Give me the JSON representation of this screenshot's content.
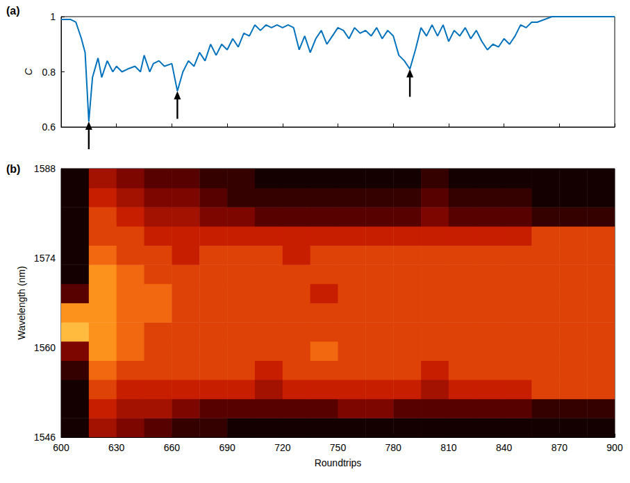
{
  "chart_data": [
    {
      "type": "line",
      "panel_label": "(a)",
      "y_label": "C",
      "color": "#0072bd",
      "x": [
        600,
        605,
        608,
        611,
        613,
        615,
        617,
        620,
        622,
        625,
        628,
        630,
        633,
        636,
        640,
        643,
        645,
        648,
        650,
        653,
        656,
        660,
        663,
        666,
        669,
        672,
        675,
        678,
        681,
        684,
        687,
        690,
        693,
        696,
        699,
        702,
        705,
        708,
        711,
        714,
        717,
        720,
        723,
        726,
        729,
        732,
        735,
        738,
        741,
        744,
        747,
        750,
        753,
        756,
        759,
        762,
        765,
        768,
        771,
        774,
        777,
        780,
        783,
        786,
        789,
        792,
        795,
        798,
        801,
        804,
        807,
        810,
        813,
        816,
        819,
        822,
        825,
        828,
        831,
        834,
        837,
        840,
        843,
        846,
        849,
        852,
        855,
        858,
        862,
        866,
        870,
        880,
        890,
        900
      ],
      "values": [
        0.99,
        0.99,
        0.98,
        0.92,
        0.87,
        0.62,
        0.78,
        0.85,
        0.78,
        0.84,
        0.8,
        0.82,
        0.8,
        0.81,
        0.82,
        0.8,
        0.86,
        0.8,
        0.83,
        0.84,
        0.82,
        0.83,
        0.73,
        0.8,
        0.84,
        0.82,
        0.87,
        0.84,
        0.9,
        0.86,
        0.9,
        0.88,
        0.92,
        0.89,
        0.94,
        0.93,
        0.97,
        0.95,
        0.97,
        0.96,
        0.97,
        0.96,
        0.97,
        0.96,
        0.88,
        0.93,
        0.87,
        0.92,
        0.95,
        0.9,
        0.93,
        0.96,
        0.95,
        0.92,
        0.96,
        0.94,
        0.95,
        0.93,
        0.96,
        0.92,
        0.95,
        0.93,
        0.86,
        0.84,
        0.81,
        0.88,
        0.96,
        0.93,
        0.97,
        0.93,
        0.97,
        0.91,
        0.95,
        0.93,
        0.96,
        0.92,
        0.95,
        0.91,
        0.88,
        0.9,
        0.89,
        0.92,
        0.9,
        0.93,
        0.97,
        0.96,
        0.98,
        0.98,
        0.99,
        1.0,
        1.0,
        1.0,
        1.0,
        1.0
      ],
      "arrows_x": [
        615,
        663,
        789
      ],
      "xlim": [
        600,
        900
      ],
      "xticks": [
        600,
        630,
        660,
        690,
        720,
        750,
        780,
        810,
        840,
        870,
        900
      ],
      "ylim": [
        0.6,
        1
      ],
      "yticks": [
        0.6,
        0.8,
        1
      ],
      "tick_labels": "y"
    },
    {
      "type": "heatmap",
      "panel_label": "(b)",
      "x_label": "Roundtrips",
      "y_label": "Wavelength (nm)",
      "x_edges": [
        600,
        615,
        630,
        645,
        660,
        675,
        690,
        705,
        720,
        735,
        750,
        765,
        780,
        795,
        810,
        825,
        840,
        855,
        870,
        885,
        900
      ],
      "y_edges": [
        1546,
        1549,
        1552,
        1555,
        1558,
        1561,
        1564,
        1567,
        1570,
        1573,
        1576,
        1579,
        1582,
        1585,
        1588
      ],
      "intensity": [
        [
          0,
          4,
          3,
          2,
          1,
          1,
          0,
          0,
          0,
          0,
          0,
          0,
          0,
          0,
          0,
          0,
          0,
          0,
          0,
          0
        ],
        [
          0,
          5,
          4,
          4,
          3,
          2,
          2,
          2,
          2,
          2,
          3,
          3,
          2,
          2,
          2,
          2,
          2,
          1,
          1,
          1
        ],
        [
          0,
          6,
          5,
          5,
          5,
          5,
          5,
          4,
          5,
          5,
          5,
          5,
          5,
          4,
          5,
          5,
          5,
          6,
          6,
          6
        ],
        [
          1,
          7,
          6,
          6,
          6,
          6,
          6,
          5,
          6,
          6,
          6,
          6,
          6,
          5,
          6,
          6,
          6,
          6,
          6,
          6
        ],
        [
          3,
          8,
          7,
          6,
          6,
          6,
          6,
          6,
          6,
          7,
          6,
          6,
          6,
          6,
          6,
          6,
          6,
          6,
          6,
          6
        ],
        [
          9,
          8,
          7,
          6,
          6,
          6,
          6,
          6,
          6,
          6,
          6,
          6,
          6,
          6,
          6,
          6,
          6,
          6,
          6,
          6
        ],
        [
          8,
          8,
          7,
          7,
          6,
          6,
          6,
          6,
          6,
          6,
          6,
          6,
          6,
          6,
          6,
          6,
          6,
          6,
          6,
          6
        ],
        [
          2,
          8,
          7,
          7,
          6,
          6,
          6,
          6,
          6,
          5,
          6,
          6,
          6,
          6,
          6,
          6,
          6,
          6,
          6,
          6
        ],
        [
          0,
          8,
          7,
          6,
          6,
          6,
          6,
          6,
          6,
          6,
          6,
          6,
          6,
          6,
          6,
          6,
          6,
          6,
          6,
          6
        ],
        [
          0,
          7,
          6,
          6,
          5,
          6,
          6,
          6,
          5,
          6,
          6,
          6,
          6,
          6,
          6,
          6,
          6,
          6,
          6,
          6
        ],
        [
          0,
          6,
          6,
          5,
          5,
          5,
          5,
          5,
          5,
          5,
          5,
          5,
          5,
          5,
          5,
          5,
          5,
          6,
          6,
          6
        ],
        [
          0,
          6,
          5,
          4,
          4,
          3,
          3,
          2,
          2,
          2,
          2,
          2,
          2,
          3,
          2,
          2,
          2,
          1,
          1,
          1
        ],
        [
          0,
          5,
          4,
          3,
          3,
          2,
          1,
          1,
          1,
          1,
          1,
          1,
          1,
          2,
          1,
          1,
          1,
          0,
          0,
          0
        ],
        [
          0,
          4,
          3,
          2,
          2,
          1,
          1,
          0,
          0,
          0,
          0,
          0,
          0,
          1,
          0,
          0,
          0,
          0,
          0,
          0
        ]
      ],
      "zlim": [
        0,
        10
      ],
      "xlim": [
        600,
        900
      ],
      "xticks": [
        600,
        630,
        660,
        690,
        720,
        750,
        780,
        810,
        840,
        870,
        900
      ],
      "ylim": [
        1546,
        1588
      ],
      "yticks": [
        1546,
        1560,
        1574,
        1588
      ]
    }
  ]
}
